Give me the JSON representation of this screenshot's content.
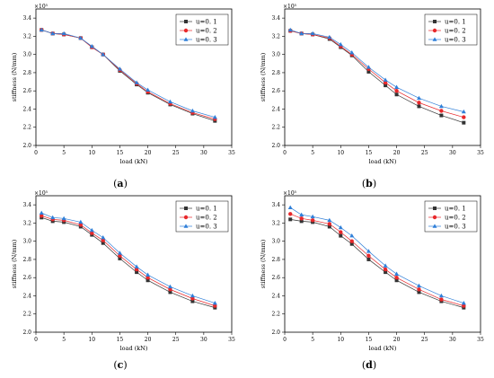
{
  "figure": {
    "panel_labels": [
      "(a)",
      "(b)",
      "(c)",
      "(d)"
    ]
  },
  "chart_data": [
    {
      "type": "line",
      "panel": "(a)",
      "xlabel": "load (kN)",
      "ylabel": "stiffness (N/mm)",
      "y_multiplier": "×10⁵",
      "xlim": [
        0,
        35
      ],
      "ylim": [
        2.0,
        3.5
      ],
      "xticks": [
        0,
        5,
        10,
        15,
        20,
        25,
        30,
        35
      ],
      "yticks": [
        2.0,
        2.2,
        2.4,
        2.6,
        2.8,
        3.0,
        3.2,
        3.4
      ],
      "legend_position": "top-right",
      "x": [
        1,
        3,
        5,
        8,
        10,
        12,
        15,
        18,
        20,
        24,
        28,
        32
      ],
      "series": [
        {
          "name": "u=0.1",
          "color": "#333333",
          "marker": "square",
          "values": [
            3.27,
            3.23,
            3.22,
            3.18,
            3.08,
            3.0,
            2.82,
            2.67,
            2.58,
            2.45,
            2.35,
            2.27
          ]
        },
        {
          "name": "u=0.2",
          "color": "#e8282b",
          "marker": "circle",
          "values": [
            3.27,
            3.23,
            3.22,
            3.18,
            3.08,
            3.0,
            2.83,
            2.68,
            2.59,
            2.46,
            2.36,
            2.29
          ]
        },
        {
          "name": "u=0.3",
          "color": "#2f7fd8",
          "marker": "triangle",
          "values": [
            3.27,
            3.23,
            3.23,
            3.18,
            3.09,
            3.0,
            2.84,
            2.69,
            2.61,
            2.48,
            2.38,
            2.31
          ]
        }
      ]
    },
    {
      "type": "line",
      "panel": "(b)",
      "xlabel": "load (kN)",
      "ylabel": "stiffness (N/mm)",
      "y_multiplier": "×10⁵",
      "xlim": [
        0,
        35
      ],
      "ylim": [
        2.0,
        3.5
      ],
      "xticks": [
        0,
        5,
        10,
        15,
        20,
        25,
        30,
        35
      ],
      "yticks": [
        2.0,
        2.2,
        2.4,
        2.6,
        2.8,
        3.0,
        3.2,
        3.4
      ],
      "legend_position": "top-right",
      "x": [
        1,
        3,
        5,
        8,
        10,
        12,
        15,
        18,
        20,
        24,
        28,
        32
      ],
      "series": [
        {
          "name": "u=0.1",
          "color": "#333333",
          "marker": "square",
          "values": [
            3.26,
            3.23,
            3.22,
            3.17,
            3.08,
            2.99,
            2.81,
            2.66,
            2.56,
            2.43,
            2.33,
            2.25
          ]
        },
        {
          "name": "u=0.2",
          "color": "#e8282b",
          "marker": "circle",
          "values": [
            3.26,
            3.23,
            3.22,
            3.18,
            3.09,
            3.0,
            2.84,
            2.69,
            2.6,
            2.47,
            2.38,
            2.31
          ]
        },
        {
          "name": "u=0.3",
          "color": "#2f7fd8",
          "marker": "triangle",
          "values": [
            3.27,
            3.23,
            3.23,
            3.19,
            3.11,
            3.02,
            2.86,
            2.72,
            2.64,
            2.52,
            2.43,
            2.37
          ]
        }
      ]
    },
    {
      "type": "line",
      "panel": "(c)",
      "xlabel": "load (kN)",
      "ylabel": "stiffness (N/mm)",
      "y_multiplier": "×10⁵",
      "xlim": [
        0,
        35
      ],
      "ylim": [
        2.0,
        3.5
      ],
      "xticks": [
        0,
        5,
        10,
        15,
        20,
        25,
        30,
        35
      ],
      "yticks": [
        2.0,
        2.2,
        2.4,
        2.6,
        2.8,
        3.0,
        3.2,
        3.4
      ],
      "legend_position": "top-right",
      "x": [
        1,
        3,
        5,
        8,
        10,
        12,
        15,
        18,
        20,
        24,
        28,
        32
      ],
      "series": [
        {
          "name": "u=0.1",
          "color": "#333333",
          "marker": "square",
          "values": [
            3.26,
            3.22,
            3.21,
            3.16,
            3.07,
            2.98,
            2.81,
            2.66,
            2.57,
            2.44,
            2.34,
            2.27
          ]
        },
        {
          "name": "u=0.2",
          "color": "#e8282b",
          "marker": "circle",
          "values": [
            3.28,
            3.24,
            3.23,
            3.18,
            3.09,
            3.01,
            2.84,
            2.69,
            2.6,
            2.47,
            2.37,
            2.29
          ]
        },
        {
          "name": "u=0.3",
          "color": "#2f7fd8",
          "marker": "triangle",
          "values": [
            3.31,
            3.26,
            3.25,
            3.21,
            3.12,
            3.04,
            2.87,
            2.72,
            2.63,
            2.5,
            2.4,
            2.32
          ]
        }
      ]
    },
    {
      "type": "line",
      "panel": "(d)",
      "xlabel": "load (kN)",
      "ylabel": "stiffness (N/mm)",
      "y_multiplier": "×10⁵",
      "xlim": [
        0,
        35
      ],
      "ylim": [
        2.0,
        3.5
      ],
      "xticks": [
        0,
        5,
        10,
        15,
        20,
        25,
        30,
        35
      ],
      "yticks": [
        2.0,
        2.2,
        2.4,
        2.6,
        2.8,
        3.0,
        3.2,
        3.4
      ],
      "legend_position": "top-right",
      "x": [
        1,
        3,
        5,
        8,
        10,
        12,
        15,
        18,
        20,
        24,
        28,
        32
      ],
      "series": [
        {
          "name": "u=0.1",
          "color": "#333333",
          "marker": "square",
          "values": [
            3.24,
            3.22,
            3.21,
            3.16,
            3.06,
            2.97,
            2.8,
            2.66,
            2.57,
            2.44,
            2.34,
            2.27
          ]
        },
        {
          "name": "u=0.2",
          "color": "#e8282b",
          "marker": "circle",
          "values": [
            3.3,
            3.25,
            3.23,
            3.19,
            3.1,
            3.0,
            2.84,
            2.69,
            2.6,
            2.47,
            2.36,
            2.29
          ]
        },
        {
          "name": "u=0.3",
          "color": "#2f7fd8",
          "marker": "triangle",
          "values": [
            3.37,
            3.29,
            3.27,
            3.23,
            3.15,
            3.06,
            2.89,
            2.73,
            2.64,
            2.51,
            2.4,
            2.32
          ]
        }
      ]
    }
  ]
}
